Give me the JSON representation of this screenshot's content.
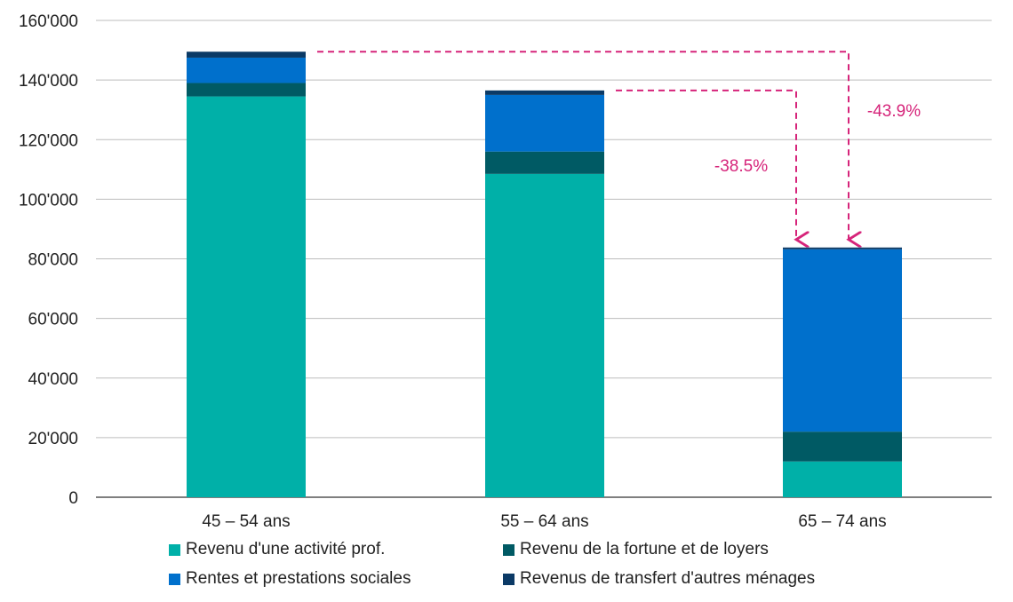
{
  "chart_data": {
    "type": "bar",
    "stacked": true,
    "categories": [
      "45 – 54 ans",
      "55 – 64 ans",
      "65 – 74 ans"
    ],
    "series": [
      {
        "name": "Revenu d'une activité prof.",
        "color": "#00b0a8",
        "values": [
          134500,
          108500,
          12000
        ]
      },
      {
        "name": "Revenu de la fortune et de loyers",
        "color": "#005a64",
        "values": [
          4500,
          7500,
          10000
        ]
      },
      {
        "name": "Rentes et prestations sociales",
        "color": "#0070cc",
        "values": [
          8500,
          19000,
          61200
        ]
      },
      {
        "name": "Revenus de transfert d'autres ménages",
        "color": "#0b3a66",
        "values": [
          2000,
          1500,
          600
        ]
      }
    ],
    "y_ticks": [
      "0",
      "20'000",
      "40'000",
      "60'000",
      "80'000",
      "100'000",
      "120'000",
      "140'000",
      "160'000"
    ],
    "ylim": [
      0,
      160000
    ],
    "grid": true,
    "legend_position": "bottom",
    "annotations": [
      {
        "text": "-38.5%",
        "from_category": "55 – 64 ans",
        "to_category": "65 – 74 ans",
        "color": "#d6247a"
      },
      {
        "text": "-43.9%",
        "from_category": "45 – 54 ans",
        "to_category": "65 – 74 ans",
        "color": "#d6247a"
      }
    ]
  }
}
